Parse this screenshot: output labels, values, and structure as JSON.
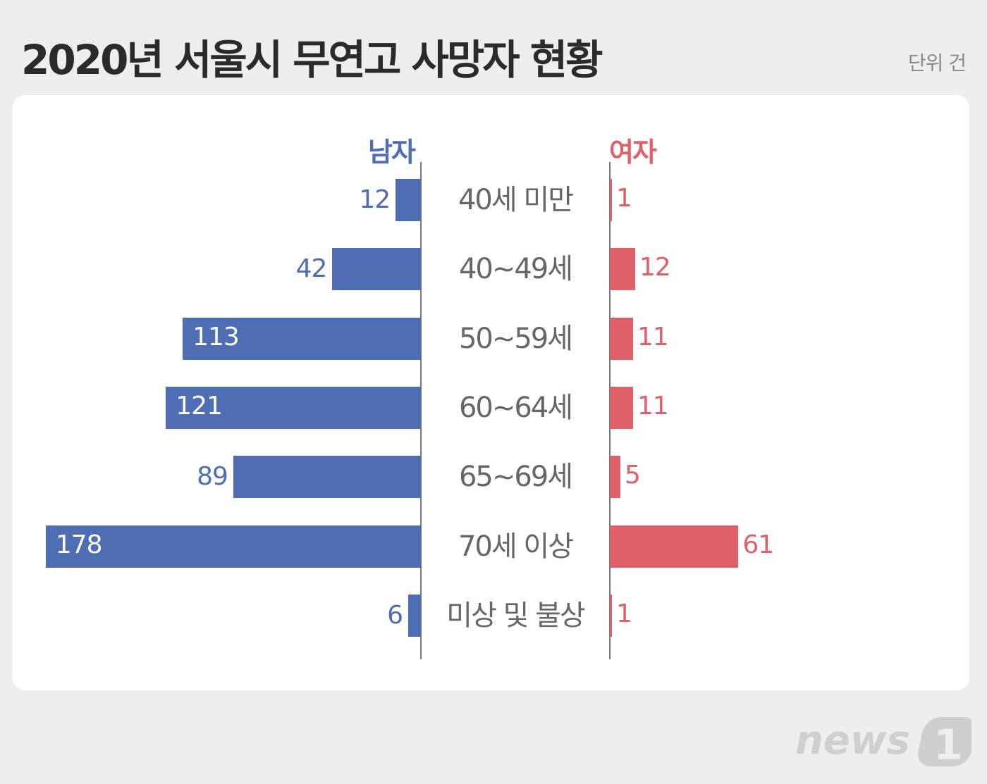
{
  "title": "2020년 서울시 무연고 사망자 현황",
  "unit": "단위 건",
  "logo": "news1",
  "colors": {
    "male": "#4e6db3",
    "female": "#e0606a",
    "background": "#eeeeee"
  },
  "chart_data": {
    "type": "bar",
    "orientation": "horizontal-butterfly",
    "title": "2020년 서울시 무연고 사망자 현황",
    "unit": "단위 건",
    "categories": [
      "40세 미만",
      "40~49세",
      "50~59세",
      "60~64세",
      "65~69세",
      "70세 이상",
      "미상 및 불상"
    ],
    "series": [
      {
        "name": "남자",
        "values": [
          12,
          42,
          113,
          121,
          89,
          178,
          6
        ]
      },
      {
        "name": "여자",
        "values": [
          1,
          12,
          11,
          11,
          5,
          61,
          1
        ]
      }
    ]
  }
}
